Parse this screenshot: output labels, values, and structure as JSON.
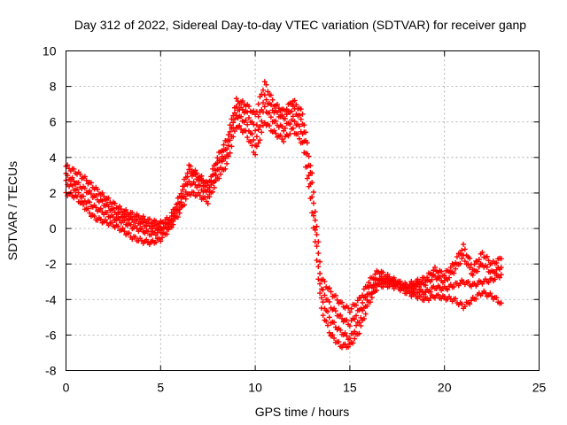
{
  "chart_data": {
    "type": "scatter",
    "title": "Day 312 of 2022, Sidereal Day-to-day VTEC variation (SDTVAR) for receiver ganp",
    "xlabel": "GPS time / hours",
    "ylabel": "SDTVAR / TECUs",
    "xlim": [
      0,
      25
    ],
    "ylim": [
      -8,
      10
    ],
    "xticks": [
      "0",
      "5",
      "10",
      "15",
      "20",
      "25"
    ],
    "yticks": [
      "-8",
      "-6",
      "-4",
      "-2",
      "0",
      "2",
      "4",
      "6",
      "8",
      "10"
    ],
    "grid": true,
    "marker": "plus",
    "color": "#ff0000",
    "series": [
      {
        "x": [
          0.0,
          0.5,
          1.0,
          1.5,
          2.0,
          2.5,
          3.0,
          3.5,
          4.0,
          4.5,
          5.0,
          5.5,
          6.0,
          6.5,
          7.0,
          7.5,
          8.0,
          8.5,
          9.0,
          9.5,
          10.0,
          10.5,
          11.0,
          11.5,
          12.0,
          12.5,
          13.0,
          13.5,
          14.0,
          14.5,
          15.0,
          15.5,
          16.0,
          16.5,
          17.0,
          17.5,
          18.0,
          18.5,
          19.0,
          19.5,
          20.0,
          20.5,
          21.0,
          21.5,
          22.0,
          22.5,
          23.0
        ],
        "y": [
          3.5,
          3.2,
          2.8,
          2.3,
          1.8,
          1.4,
          1.0,
          0.8,
          0.6,
          0.4,
          0.3,
          0.6,
          1.8,
          3.5,
          3.0,
          2.5,
          4.0,
          5.0,
          7.2,
          7.0,
          6.4,
          8.2,
          7.0,
          6.6,
          7.2,
          6.5,
          3.0,
          -2.8,
          -3.6,
          -4.2,
          -4.6,
          -4.0,
          -3.0,
          -2.4,
          -2.7,
          -3.0,
          -3.2,
          -3.0,
          -2.8,
          -2.3,
          -2.6,
          -2.0,
          -1.0,
          -2.2,
          -1.4,
          -2.0,
          -1.7
        ]
      },
      {
        "x": [
          0.0,
          0.5,
          1.0,
          1.5,
          2.0,
          2.5,
          3.0,
          3.5,
          4.0,
          4.5,
          5.0,
          5.5,
          6.0,
          6.5,
          7.0,
          7.5,
          8.0,
          8.5,
          9.0,
          9.5,
          10.0,
          10.5,
          11.0,
          11.5,
          12.0,
          12.5,
          13.0,
          13.5,
          14.0,
          14.5,
          15.0,
          15.5,
          16.0,
          16.5,
          17.0,
          17.5,
          18.0,
          18.5,
          19.0,
          19.5,
          20.0,
          20.5,
          21.0,
          21.5,
          22.0,
          22.5,
          23.0
        ],
        "y": [
          3.0,
          2.6,
          2.2,
          1.8,
          1.4,
          1.0,
          0.7,
          0.5,
          0.3,
          0.1,
          0.0,
          0.4,
          1.5,
          3.2,
          2.8,
          2.2,
          3.6,
          4.6,
          6.8,
          6.6,
          5.6,
          7.4,
          6.6,
          6.2,
          6.8,
          6.0,
          2.5,
          -3.4,
          -4.4,
          -5.0,
          -5.4,
          -4.6,
          -3.4,
          -2.8,
          -2.9,
          -3.1,
          -3.3,
          -3.2,
          -3.1,
          -2.7,
          -3.0,
          -2.4,
          -1.6,
          -2.6,
          -2.0,
          -2.5,
          -2.2
        ]
      },
      {
        "x": [
          0.0,
          0.5,
          1.0,
          1.5,
          2.0,
          2.5,
          3.0,
          3.5,
          4.0,
          4.5,
          5.0,
          5.5,
          6.0,
          6.5,
          7.0,
          7.5,
          8.0,
          8.5,
          9.0,
          9.5,
          10.0,
          10.5,
          11.0,
          11.5,
          12.0,
          12.5,
          13.0,
          13.5,
          14.0,
          14.5,
          15.0,
          15.5,
          16.0,
          16.5,
          17.0,
          17.5,
          18.0,
          18.5,
          19.0,
          19.5,
          20.0,
          20.5,
          21.0,
          21.5,
          22.0,
          22.5,
          23.0
        ],
        "y": [
          2.6,
          2.2,
          1.6,
          1.2,
          0.9,
          0.6,
          0.4,
          0.1,
          -0.1,
          -0.3,
          -0.2,
          0.2,
          1.2,
          2.6,
          2.4,
          1.9,
          3.2,
          4.2,
          6.4,
          6.0,
          4.8,
          6.8,
          6.0,
          5.6,
          6.2,
          5.4,
          1.8,
          -4.0,
          -5.2,
          -5.8,
          -6.2,
          -5.2,
          -3.8,
          -3.0,
          -3.0,
          -3.1,
          -3.4,
          -3.5,
          -3.6,
          -3.3,
          -3.4,
          -3.2,
          -3.0,
          -3.2,
          -3.0,
          -2.9,
          -2.6
        ]
      },
      {
        "x": [
          0.0,
          0.5,
          1.0,
          1.5,
          2.0,
          2.5,
          3.0,
          3.5,
          4.0,
          4.5,
          5.0,
          5.5,
          6.0,
          6.5,
          7.0,
          7.5,
          8.0,
          8.5,
          9.0,
          9.5,
          10.0,
          10.5,
          11.0,
          11.5,
          12.0,
          12.5,
          13.0,
          13.5,
          14.0,
          14.5,
          15.0,
          15.5,
          16.0,
          16.5,
          17.0,
          17.5,
          18.0,
          18.5,
          19.0,
          19.5,
          20.0,
          20.5,
          21.0,
          21.5,
          22.0,
          22.5,
          23.0
        ],
        "y": [
          2.0,
          1.8,
          1.2,
          0.6,
          0.4,
          0.2,
          -0.1,
          -0.5,
          -0.7,
          -0.8,
          -0.6,
          0.0,
          0.9,
          2.0,
          1.9,
          1.5,
          2.8,
          3.6,
          5.8,
          5.4,
          4.2,
          6.0,
          5.4,
          5.0,
          5.6,
          4.8,
          1.0,
          -4.6,
          -6.0,
          -6.6,
          -6.6,
          -5.8,
          -4.2,
          -3.2,
          -3.2,
          -3.3,
          -3.6,
          -3.8,
          -4.0,
          -3.8,
          -3.9,
          -4.0,
          -4.4,
          -4.0,
          -3.6,
          -3.8,
          -4.2
        ]
      }
    ]
  }
}
